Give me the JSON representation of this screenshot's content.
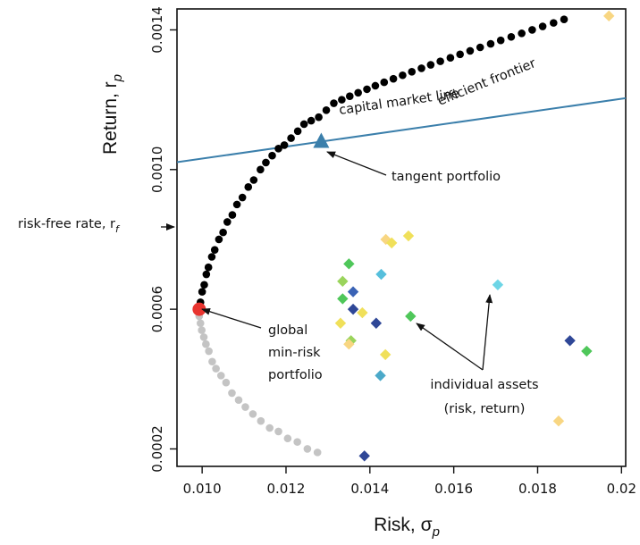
{
  "chart_data": {
    "type": "scatter",
    "title": "",
    "xlabel": "Risk, σ",
    "xlabel_sub": "p",
    "ylabel": "Return, r",
    "ylabel_sub": "p",
    "xlim": [
      0.0094,
      0.0201
    ],
    "ylim": [
      0.00015,
      0.00146
    ],
    "x_ticks": [
      {
        "value": 0.01,
        "label": "0.010"
      },
      {
        "value": 0.012,
        "label": "0.012"
      },
      {
        "value": 0.014,
        "label": "0.014"
      },
      {
        "value": 0.016,
        "label": "0.016"
      },
      {
        "value": 0.018,
        "label": "0.018"
      },
      {
        "value": 0.02,
        "label": "0.02"
      }
    ],
    "y_ticks": [
      {
        "value": 0.0002,
        "label": "0.0002"
      },
      {
        "value": 0.0006,
        "label": "0.0006"
      },
      {
        "value": 0.001,
        "label": "0.0010"
      },
      {
        "value": 0.0014,
        "label": "0.0014"
      }
    ],
    "risk_free_rate": 0.00086,
    "colors": {
      "efficient": "#000000",
      "inefficient": "#c4c4c4",
      "cml": "#3b7fab",
      "gmv": "#e8342f",
      "tangent": "#3b7fab"
    },
    "series": [
      {
        "name": "efficient frontier",
        "marker": "circle",
        "points": [
          [
            0.00993,
            0.0006
          ],
          [
            0.00996,
            0.00062
          ],
          [
            0.01,
            0.00065
          ],
          [
            0.01005,
            0.00067
          ],
          [
            0.0101,
            0.0007
          ],
          [
            0.01015,
            0.00072
          ],
          [
            0.01023,
            0.00075
          ],
          [
            0.0103,
            0.00077
          ],
          [
            0.0104,
            0.0008
          ],
          [
            0.0105,
            0.00082
          ],
          [
            0.0106,
            0.00085
          ],
          [
            0.01072,
            0.00087
          ],
          [
            0.01083,
            0.0009
          ],
          [
            0.01096,
            0.00092
          ],
          [
            0.0111,
            0.00095
          ],
          [
            0.01123,
            0.00097
          ],
          [
            0.01139,
            0.001
          ],
          [
            0.01152,
            0.00102
          ],
          [
            0.01167,
            0.00104
          ],
          [
            0.01182,
            0.00106
          ],
          [
            0.01196,
            0.00107
          ],
          [
            0.01212,
            0.00109
          ],
          [
            0.01228,
            0.00111
          ],
          [
            0.01243,
            0.00113
          ],
          [
            0.0126,
            0.00114
          ],
          [
            0.01278,
            0.00115
          ],
          [
            0.01296,
            0.00117
          ],
          [
            0.01314,
            0.00119
          ],
          [
            0.01333,
            0.0012
          ],
          [
            0.01352,
            0.00121
          ],
          [
            0.01372,
            0.00122
          ],
          [
            0.01393,
            0.00123
          ],
          [
            0.01413,
            0.00124
          ],
          [
            0.01434,
            0.00125
          ],
          [
            0.01456,
            0.00126
          ],
          [
            0.01478,
            0.00127
          ],
          [
            0.015,
            0.00128
          ],
          [
            0.01523,
            0.00129
          ],
          [
            0.01545,
            0.0013
          ],
          [
            0.01568,
            0.00131
          ],
          [
            0.01592,
            0.00132
          ],
          [
            0.01615,
            0.00133
          ],
          [
            0.01639,
            0.00134
          ],
          [
            0.01663,
            0.00135
          ],
          [
            0.01688,
            0.00136
          ],
          [
            0.01712,
            0.00137
          ],
          [
            0.01737,
            0.00138
          ],
          [
            0.01762,
            0.00139
          ],
          [
            0.01787,
            0.0014
          ],
          [
            0.01812,
            0.00141
          ],
          [
            0.01838,
            0.00142
          ],
          [
            0.01863,
            0.00143
          ]
        ]
      },
      {
        "name": "inefficient frontier",
        "marker": "circle",
        "points": [
          [
            0.00993,
            0.00058
          ],
          [
            0.00996,
            0.00056
          ],
          [
            0.00999,
            0.00054
          ],
          [
            0.01004,
            0.00052
          ],
          [
            0.01009,
            0.0005
          ],
          [
            0.01016,
            0.00048
          ],
          [
            0.01024,
            0.00045
          ],
          [
            0.01033,
            0.00043
          ],
          [
            0.01045,
            0.00041
          ],
          [
            0.01057,
            0.00039
          ],
          [
            0.01071,
            0.00036
          ],
          [
            0.01087,
            0.00034
          ],
          [
            0.01103,
            0.00032
          ],
          [
            0.01121,
            0.0003
          ],
          [
            0.0114,
            0.00028
          ],
          [
            0.01161,
            0.00026
          ],
          [
            0.01182,
            0.00025
          ],
          [
            0.01204,
            0.00023
          ],
          [
            0.01227,
            0.00022
          ],
          [
            0.01251,
            0.0002
          ],
          [
            0.01275,
            0.00019
          ]
        ]
      }
    ],
    "cml": {
      "label": "capital market line",
      "x_range": [
        0.0094,
        0.0201
      ]
    },
    "gmv": {
      "x": 0.00993,
      "y": 0.0006,
      "label": [
        "global",
        "min-risk",
        "portfolio"
      ]
    },
    "tangent": {
      "x": 0.01284,
      "y": 0.00108,
      "label": "tangent portfolio"
    },
    "assets": {
      "label": [
        "individual assets",
        "(risk, return)"
      ],
      "points": [
        {
          "x": 0.0135,
          "y": 0.00073,
          "color": "#4fc75a"
        },
        {
          "x": 0.01335,
          "y": 0.00068,
          "color": "#9ad45c"
        },
        {
          "x": 0.0136,
          "y": 0.00065,
          "color": "#3a63b5"
        },
        {
          "x": 0.01335,
          "y": 0.00063,
          "color": "#4fc75a"
        },
        {
          "x": 0.0136,
          "y": 0.0006,
          "color": "#2f4797"
        },
        {
          "x": 0.01382,
          "y": 0.00059,
          "color": "#f0e05a"
        },
        {
          "x": 0.0133,
          "y": 0.00056,
          "color": "#f0e05a"
        },
        {
          "x": 0.01415,
          "y": 0.00056,
          "color": "#2f4797"
        },
        {
          "x": 0.01355,
          "y": 0.00051,
          "color": "#9ad45c"
        },
        {
          "x": 0.0135,
          "y": 0.0005,
          "color": "#f8d682"
        },
        {
          "x": 0.01437,
          "y": 0.00047,
          "color": "#f0e05a"
        },
        {
          "x": 0.01425,
          "y": 0.00041,
          "color": "#4ba9c9"
        },
        {
          "x": 0.01427,
          "y": 0.0007,
          "color": "#56bfdc"
        },
        {
          "x": 0.01438,
          "y": 0.0008,
          "color": "#f8d682"
        },
        {
          "x": 0.01452,
          "y": 0.00079,
          "color": "#f0e05a"
        },
        {
          "x": 0.01492,
          "y": 0.00081,
          "color": "#f0e05a"
        },
        {
          "x": 0.01497,
          "y": 0.00058,
          "color": "#4fc75a"
        },
        {
          "x": 0.01705,
          "y": 0.00067,
          "color": "#6dd5e6"
        },
        {
          "x": 0.01877,
          "y": 0.00051,
          "color": "#2f4797"
        },
        {
          "x": 0.01917,
          "y": 0.00048,
          "color": "#4fc75a"
        },
        {
          "x": 0.0185,
          "y": 0.00028,
          "color": "#f8d682"
        },
        {
          "x": 0.0197,
          "y": 0.00144,
          "color": "#f8d682"
        },
        {
          "x": 0.01387,
          "y": 0.00018,
          "color": "#2f4797"
        }
      ]
    },
    "annotations": {
      "risk_free": {
        "text": "risk-free rate, r",
        "sub": "f"
      },
      "efficient": "efficient frontier"
    }
  }
}
